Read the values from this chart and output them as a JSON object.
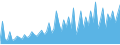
{
  "values": [
    2,
    15,
    3,
    2,
    8,
    2,
    3,
    5,
    4,
    3,
    6,
    4,
    5,
    8,
    6,
    5,
    7,
    9,
    6,
    8,
    14,
    7,
    10,
    22,
    14,
    8,
    16,
    11,
    18,
    10,
    24,
    6,
    12,
    22,
    10,
    18,
    12,
    22,
    14,
    28,
    10,
    16,
    24,
    10,
    20,
    16,
    22,
    14,
    20,
    26
  ],
  "line_color": "#5ab4e5",
  "fill_color": "#5ab4e5",
  "background_color": "#ffffff",
  "ylim_min": -1,
  "alpha": 1.0
}
